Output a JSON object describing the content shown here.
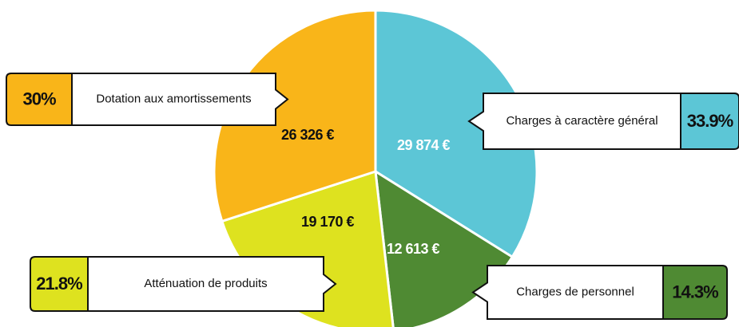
{
  "chart_data": {
    "type": "pie",
    "categories": [
      "Charges à caractère général",
      "Charges de personnel",
      "Atténuation de produits",
      "Dotation aux amortissements"
    ],
    "values": [
      33.9,
      14.3,
      21.8,
      30
    ],
    "value_labels": [
      "33.9%",
      "14.3%",
      "21.8%",
      "30%"
    ],
    "amount_labels": [
      "29 874 €",
      "12 613 €",
      "19 170 €",
      "26 326 €"
    ],
    "colors": [
      "#5cc6d6",
      "#4f8a33",
      "#dee21f",
      "#f9b519"
    ]
  }
}
